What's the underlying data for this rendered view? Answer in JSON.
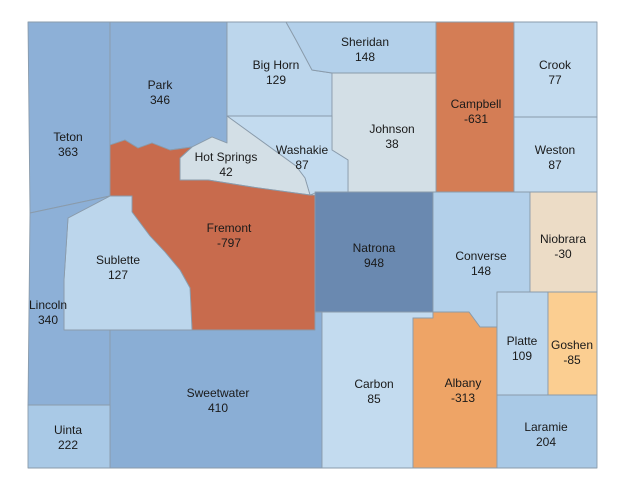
{
  "map": {
    "counties": [
      {
        "id": "teton",
        "name": "Teton",
        "value": "363",
        "color": "#8db0d7"
      },
      {
        "id": "park",
        "name": "Park",
        "value": "346",
        "color": "#8db0d7"
      },
      {
        "id": "big-horn",
        "name": "Big Horn",
        "value": "129",
        "color": "#bcd6ec"
      },
      {
        "id": "sheridan",
        "name": "Sheridan",
        "value": "148",
        "color": "#b3d0ea"
      },
      {
        "id": "campbell",
        "name": "Campbell",
        "value": "-631",
        "color": "#d47d55"
      },
      {
        "id": "crook",
        "name": "Crook",
        "value": "77",
        "color": "#c3dbef"
      },
      {
        "id": "johnson",
        "name": "Johnson",
        "value": "38",
        "color": "#d3dfe6"
      },
      {
        "id": "washakie",
        "name": "Washakie",
        "value": "87",
        "color": "#c3dbef"
      },
      {
        "id": "hot-springs",
        "name": "Hot Springs",
        "value": "42",
        "color": "#d3dfe6"
      },
      {
        "id": "weston",
        "name": "Weston",
        "value": "87",
        "color": "#c3dbef"
      },
      {
        "id": "fremont",
        "name": "Fremont",
        "value": "-797",
        "color": "#c86b4d"
      },
      {
        "id": "natrona",
        "name": "Natrona",
        "value": "948",
        "color": "#6a89b0"
      },
      {
        "id": "converse",
        "name": "Converse",
        "value": "148",
        "color": "#b3d0ea"
      },
      {
        "id": "niobrara",
        "name": "Niobrara",
        "value": "-30",
        "color": "#ecdcc6"
      },
      {
        "id": "sublette",
        "name": "Sublette",
        "value": "127",
        "color": "#bcd6ec"
      },
      {
        "id": "lincoln",
        "name": "Lincoln",
        "value": "340",
        "color": "#8db0d7"
      },
      {
        "id": "sweetwater",
        "name": "Sweetwater",
        "value": "410",
        "color": "#8aaed5"
      },
      {
        "id": "carbon",
        "name": "Carbon",
        "value": "85",
        "color": "#c3dbef"
      },
      {
        "id": "albany",
        "name": "Albany",
        "value": "-313",
        "color": "#eea466"
      },
      {
        "id": "platte",
        "name": "Platte",
        "value": "109",
        "color": "#bcd6ec"
      },
      {
        "id": "goshen",
        "name": "Goshen",
        "value": "-85",
        "color": "#fbce91"
      },
      {
        "id": "uinta",
        "name": "Uinta",
        "value": "222",
        "color": "#a9c9e6"
      },
      {
        "id": "laramie",
        "name": "Laramie",
        "value": "204",
        "color": "#a9c9e6"
      }
    ]
  }
}
